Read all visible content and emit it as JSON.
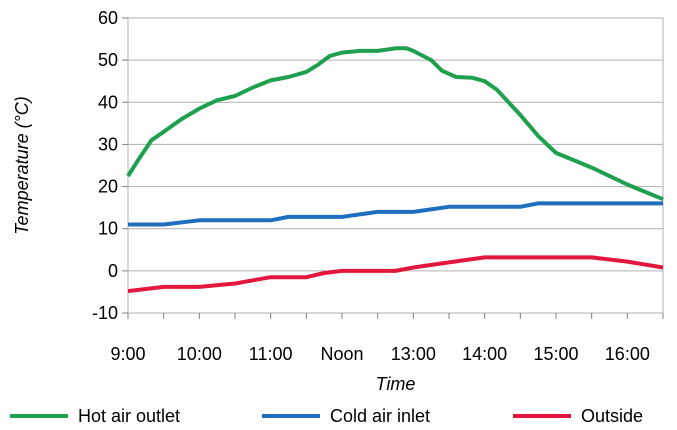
{
  "chart_data": {
    "type": "line",
    "title": "",
    "xlabel": "Time",
    "ylabel": "Temperature (°C)",
    "ylim": [
      -10,
      60
    ],
    "yticks": [
      "60",
      "50",
      "40",
      "30",
      "20",
      "10",
      "0",
      "-10"
    ],
    "ytick_values": [
      60,
      50,
      40,
      30,
      20,
      10,
      0,
      -10
    ],
    "xlim": [
      9,
      16.5
    ],
    "xticks": [
      "9:00",
      "10:00",
      "11:00",
      "Noon",
      "13:00",
      "14:00",
      "15:00",
      "16:00"
    ],
    "xtick_values": [
      9,
      10,
      11,
      12,
      13,
      14,
      15,
      16
    ],
    "grid": "horizontal",
    "legend": "bottom",
    "series": [
      {
        "name": "Hot air outlet",
        "color": "#1ea04f",
        "x": [
          9.0,
          9.17,
          9.33,
          9.5,
          9.75,
          10.0,
          10.25,
          10.5,
          10.75,
          11.0,
          11.25,
          11.5,
          11.67,
          11.83,
          12.0,
          12.25,
          12.5,
          12.75,
          12.9,
          13.0,
          13.25,
          13.4,
          13.6,
          13.83,
          14.0,
          14.17,
          14.5,
          14.75,
          15.0,
          15.5,
          16.0,
          16.5
        ],
        "y": [
          22.5,
          27,
          31,
          33,
          36,
          38.5,
          40.5,
          41.5,
          43.5,
          45.2,
          46,
          47.2,
          49,
          51,
          51.8,
          52.2,
          52.2,
          52.8,
          52.8,
          52.2,
          50,
          47.5,
          46,
          45.8,
          45,
          43,
          37,
          32,
          28,
          24.5,
          20.5,
          17
        ]
      },
      {
        "name": "Cold air inlet",
        "color": "#1f6fbe",
        "x": [
          9.0,
          9.5,
          10.0,
          10.5,
          11.0,
          11.25,
          12.0,
          12.5,
          13.0,
          13.5,
          14.0,
          14.5,
          14.75,
          15.0,
          16.0,
          16.5
        ],
        "y": [
          11,
          11,
          12,
          12,
          12,
          12.8,
          12.8,
          14,
          14,
          15.2,
          15.2,
          15.2,
          16,
          16,
          16,
          16
        ]
      },
      {
        "name": "Outside",
        "color": "#e3173e",
        "x": [
          9.0,
          9.5,
          10.0,
          10.5,
          11.0,
          11.25,
          11.5,
          11.75,
          12.0,
          12.5,
          12.75,
          13.0,
          13.5,
          14.0,
          14.5,
          15.0,
          15.5,
          16.0,
          16.5
        ],
        "y": [
          -4.8,
          -3.8,
          -3.8,
          -3,
          -1.5,
          -1.5,
          -1.5,
          -0.5,
          0,
          0,
          0,
          0.8,
          2,
          3.2,
          3.2,
          3.2,
          3.2,
          2.2,
          0.8
        ]
      }
    ]
  }
}
